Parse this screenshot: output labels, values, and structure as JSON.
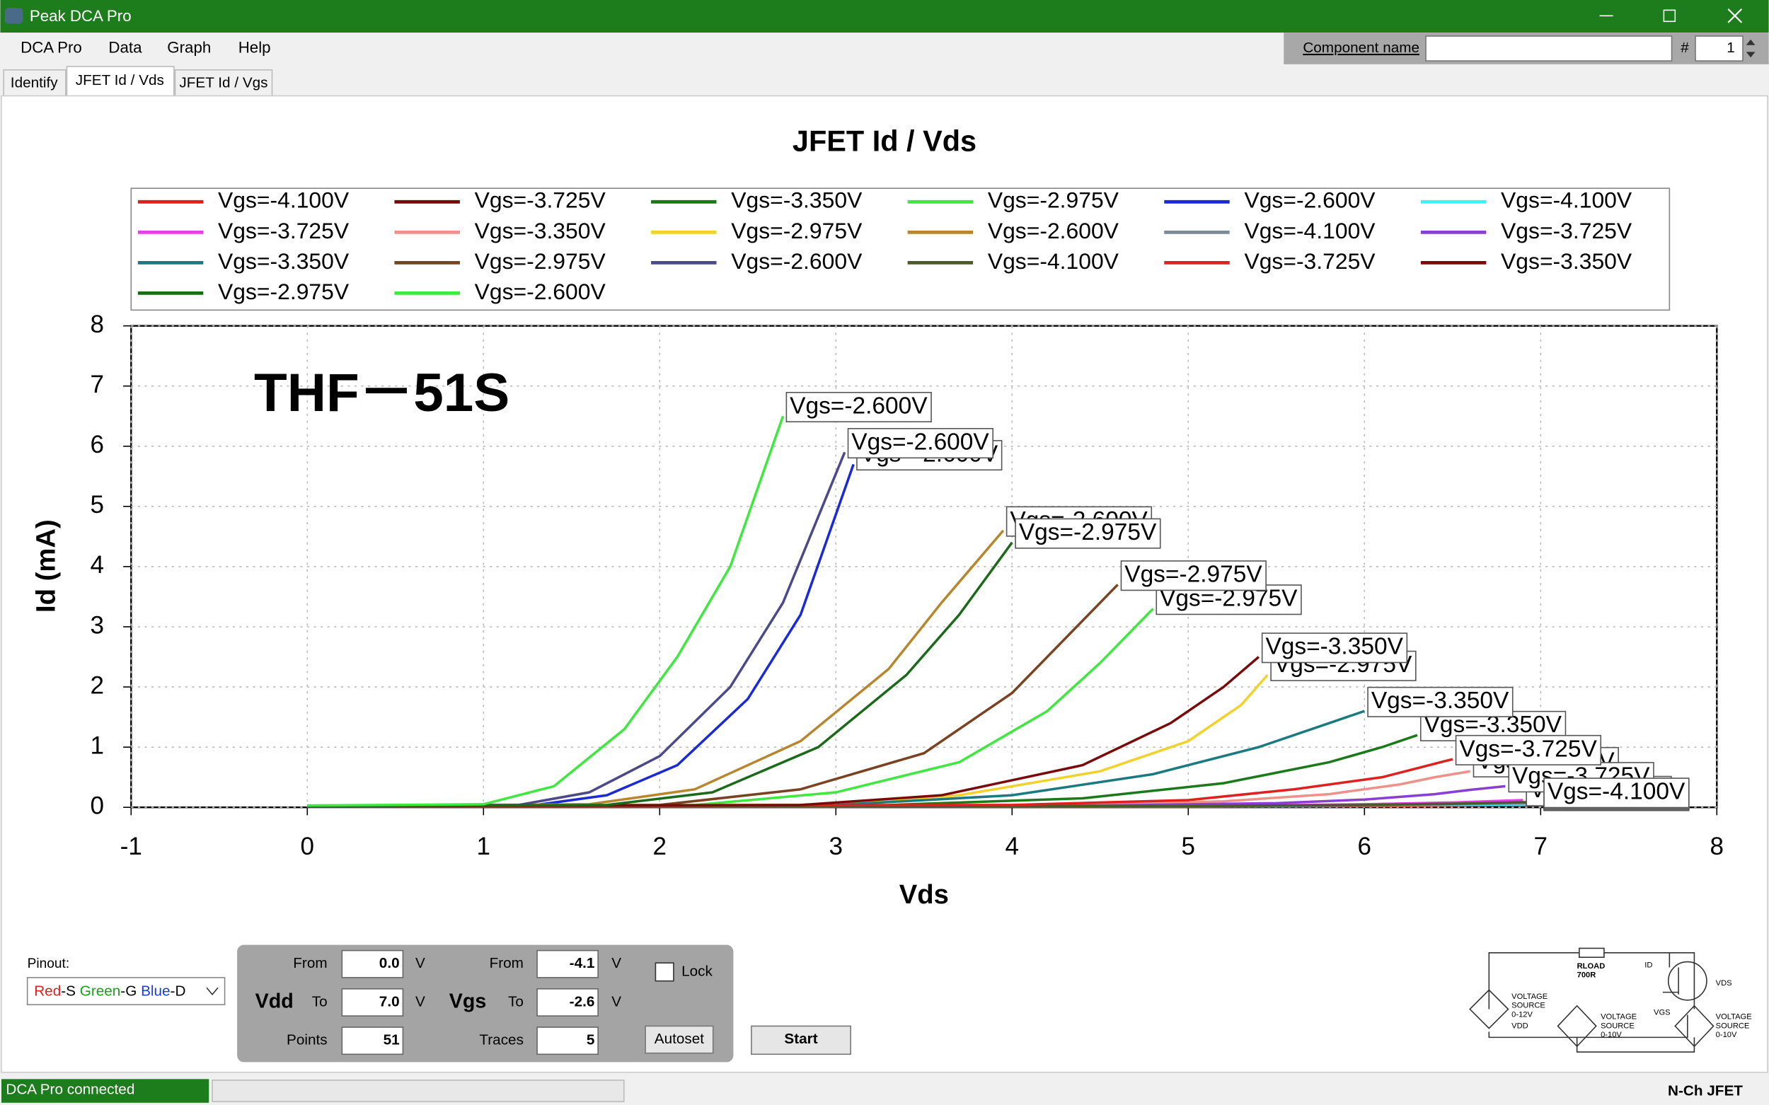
{
  "window": {
    "title": "Peak DCA Pro"
  },
  "menu": [
    "DCA Pro",
    "Data",
    "Graph",
    "Help"
  ],
  "component": {
    "label": "Component name",
    "hash": "#",
    "count": 1
  },
  "tabs": [
    "Identify",
    "JFET Id / Vds",
    "JFET Id / Vgs"
  ],
  "chart_data": {
    "type": "line",
    "title": "JFET Id / Vds",
    "annotation": "THF－51S",
    "x_label": "Vds",
    "y_label": "Id (mA)",
    "xlim": [
      -1,
      8
    ],
    "xticks": [
      -1,
      0,
      1,
      2,
      3,
      4,
      5,
      6,
      7,
      8
    ],
    "ylim": [
      0,
      8
    ],
    "yticks": [
      0,
      1,
      2,
      3,
      4,
      5,
      6,
      7,
      8
    ],
    "grid": true,
    "legend": "top",
    "series": [
      {
        "name": "Vgs=-4.100V",
        "color": "#e0201e",
        "x": [
          0,
          5,
          6,
          6.5,
          7.0
        ],
        "values": [
          0.01,
          0.01,
          0.02,
          0.03,
          0.04
        ]
      },
      {
        "name": "Vgs=-3.725V",
        "color": "#7a0a0a",
        "x": [
          0,
          5,
          6,
          6.5,
          7.0
        ],
        "values": [
          0.01,
          0.02,
          0.03,
          0.04,
          0.06
        ]
      },
      {
        "name": "Vgs=-3.350V",
        "color": "#1a7a1a",
        "x": [
          0,
          3.3,
          4.4,
          5.2,
          5.8,
          6.1,
          6.3
        ],
        "values": [
          0.02,
          0.04,
          0.15,
          0.4,
          0.75,
          1.0,
          1.2
        ]
      },
      {
        "name": "Vgs=-2.975V",
        "color": "#3ee83e",
        "x": [
          0,
          2.2,
          3.0,
          3.7,
          4.2,
          4.5,
          4.8
        ],
        "values": [
          0.02,
          0.04,
          0.25,
          0.75,
          1.6,
          2.4,
          3.3
        ]
      },
      {
        "name": "Vgs=-2.600V",
        "color": "#1a2ad4",
        "x": [
          0,
          1.3,
          1.7,
          2.1,
          2.5,
          2.8,
          3.1
        ],
        "values": [
          0.02,
          0.04,
          0.2,
          0.7,
          1.8,
          3.2,
          5.7
        ]
      },
      {
        "name": "Vgs=-4.100V",
        "color": "#3ef0f8",
        "x": [
          0,
          5,
          6,
          6.5,
          7.0
        ],
        "values": [
          0.01,
          0.02,
          0.03,
          0.04,
          0.05
        ]
      },
      {
        "name": "Vgs=-3.725V",
        "color": "#e83ee8",
        "x": [
          0,
          5,
          6,
          6.5,
          6.9
        ],
        "values": [
          0.01,
          0.02,
          0.05,
          0.08,
          0.12
        ]
      },
      {
        "name": "Vgs=-3.350V",
        "color": "#f0908a",
        "x": [
          0,
          4.2,
          5.2,
          5.8,
          6.2,
          6.4,
          6.6
        ],
        "values": [
          0.02,
          0.03,
          0.1,
          0.22,
          0.38,
          0.5,
          0.6
        ]
      },
      {
        "name": "Vgs=-2.975V",
        "color": "#f2d22a",
        "x": [
          0,
          2.9,
          3.7,
          4.5,
          5.0,
          5.3,
          5.45
        ],
        "values": [
          0.02,
          0.04,
          0.2,
          0.6,
          1.1,
          1.7,
          2.2
        ]
      },
      {
        "name": "Vgs=-2.600V",
        "color": "#b8862e",
        "x": [
          0,
          1.6,
          2.2,
          2.8,
          3.3,
          3.6,
          3.95
        ],
        "values": [
          0.02,
          0.05,
          0.3,
          1.1,
          2.3,
          3.4,
          4.6
        ]
      },
      {
        "name": "Vgs=-4.100V",
        "color": "#7a8a9a",
        "x": [
          0,
          5,
          6,
          6.5,
          7.0
        ],
        "values": [
          0.01,
          0.02,
          0.03,
          0.05,
          0.07
        ]
      },
      {
        "name": "Vgs=-3.725V",
        "color": "#8a3ed4",
        "x": [
          0,
          4.5,
          5.5,
          6.0,
          6.4,
          6.6,
          6.8
        ],
        "values": [
          0.02,
          0.03,
          0.07,
          0.13,
          0.22,
          0.29,
          0.35
        ]
      },
      {
        "name": "Vgs=-3.350V",
        "color": "#1a7a80",
        "x": [
          0,
          3.0,
          4.0,
          4.8,
          5.4,
          5.8,
          6.0
        ],
        "values": [
          0.02,
          0.04,
          0.2,
          0.55,
          1.0,
          1.4,
          1.6
        ]
      },
      {
        "name": "Vgs=-2.975V",
        "color": "#7a4220",
        "x": [
          0,
          2.0,
          2.8,
          3.5,
          4.0,
          4.3,
          4.6
        ],
        "values": [
          0.02,
          0.04,
          0.3,
          0.9,
          1.9,
          2.8,
          3.7
        ]
      },
      {
        "name": "Vgs=-2.600V",
        "color": "#4a4a8a",
        "x": [
          0,
          1.2,
          1.6,
          2.0,
          2.4,
          2.7,
          3.05
        ],
        "values": [
          0.02,
          0.04,
          0.25,
          0.85,
          2.0,
          3.4,
          5.9
        ]
      },
      {
        "name": "Vgs=-4.100V",
        "color": "#4a5a2a",
        "x": [
          0,
          5,
          6,
          6.5,
          7.0
        ],
        "values": [
          0.01,
          0.02,
          0.04,
          0.06,
          0.09
        ]
      },
      {
        "name": "Vgs=-3.725V",
        "color": "#e0201e",
        "x": [
          0,
          4.0,
          5.0,
          5.6,
          6.1,
          6.3,
          6.5
        ],
        "values": [
          0.02,
          0.04,
          0.12,
          0.3,
          0.5,
          0.65,
          0.8
        ]
      },
      {
        "name": "Vgs=-3.350V",
        "color": "#7a0a0a",
        "x": [
          0,
          2.8,
          3.6,
          4.4,
          4.9,
          5.2,
          5.4
        ],
        "values": [
          0.02,
          0.04,
          0.2,
          0.7,
          1.4,
          2.0,
          2.5
        ]
      },
      {
        "name": "Vgs=-2.975V",
        "color": "#1a6a1a",
        "x": [
          0,
          1.7,
          2.3,
          2.9,
          3.4,
          3.7,
          4.0
        ],
        "values": [
          0.02,
          0.04,
          0.25,
          1.0,
          2.2,
          3.2,
          4.4
        ]
      },
      {
        "name": "Vgs=-2.600V",
        "color": "#3ee83e",
        "x": [
          0,
          1.0,
          1.4,
          1.8,
          2.1,
          2.4,
          2.7
        ],
        "values": [
          0.03,
          0.05,
          0.35,
          1.3,
          2.5,
          4.0,
          6.5
        ]
      }
    ]
  },
  "pinout": {
    "label": "Pinout:",
    "parts": [
      "Red",
      "-S ",
      "Green",
      "-G ",
      "Blue",
      "-D"
    ]
  },
  "controls": {
    "vdd": {
      "label": "Vdd",
      "from_label": "From",
      "from": "0.0",
      "to_label": "To",
      "to": "7.0",
      "points_label": "Points",
      "points": 51,
      "unit": "V"
    },
    "vgs": {
      "label": "Vgs",
      "from_label": "From",
      "from": "-4.1",
      "to_label": "To",
      "to": "-2.6",
      "traces_label": "Traces",
      "traces": 5,
      "unit": "V"
    },
    "lock": "Lock",
    "autoset": "Autoset",
    "start": "Start"
  },
  "circuit": {
    "rload": "RLOAD",
    "rload_value": "700R",
    "id": "ID",
    "vds": "VDS",
    "vgs": "VGS",
    "source1": [
      "VOLTAGE",
      "SOURCE",
      "0-12V",
      "VDD"
    ],
    "source2": [
      "VOLTAGE",
      "SOURCE",
      "0-10V"
    ],
    "source3": [
      "VOLTAGE",
      "SOURCE",
      "0-10V"
    ]
  },
  "status": {
    "connection": "DCA Pro connected",
    "device": "N-Ch JFET"
  }
}
